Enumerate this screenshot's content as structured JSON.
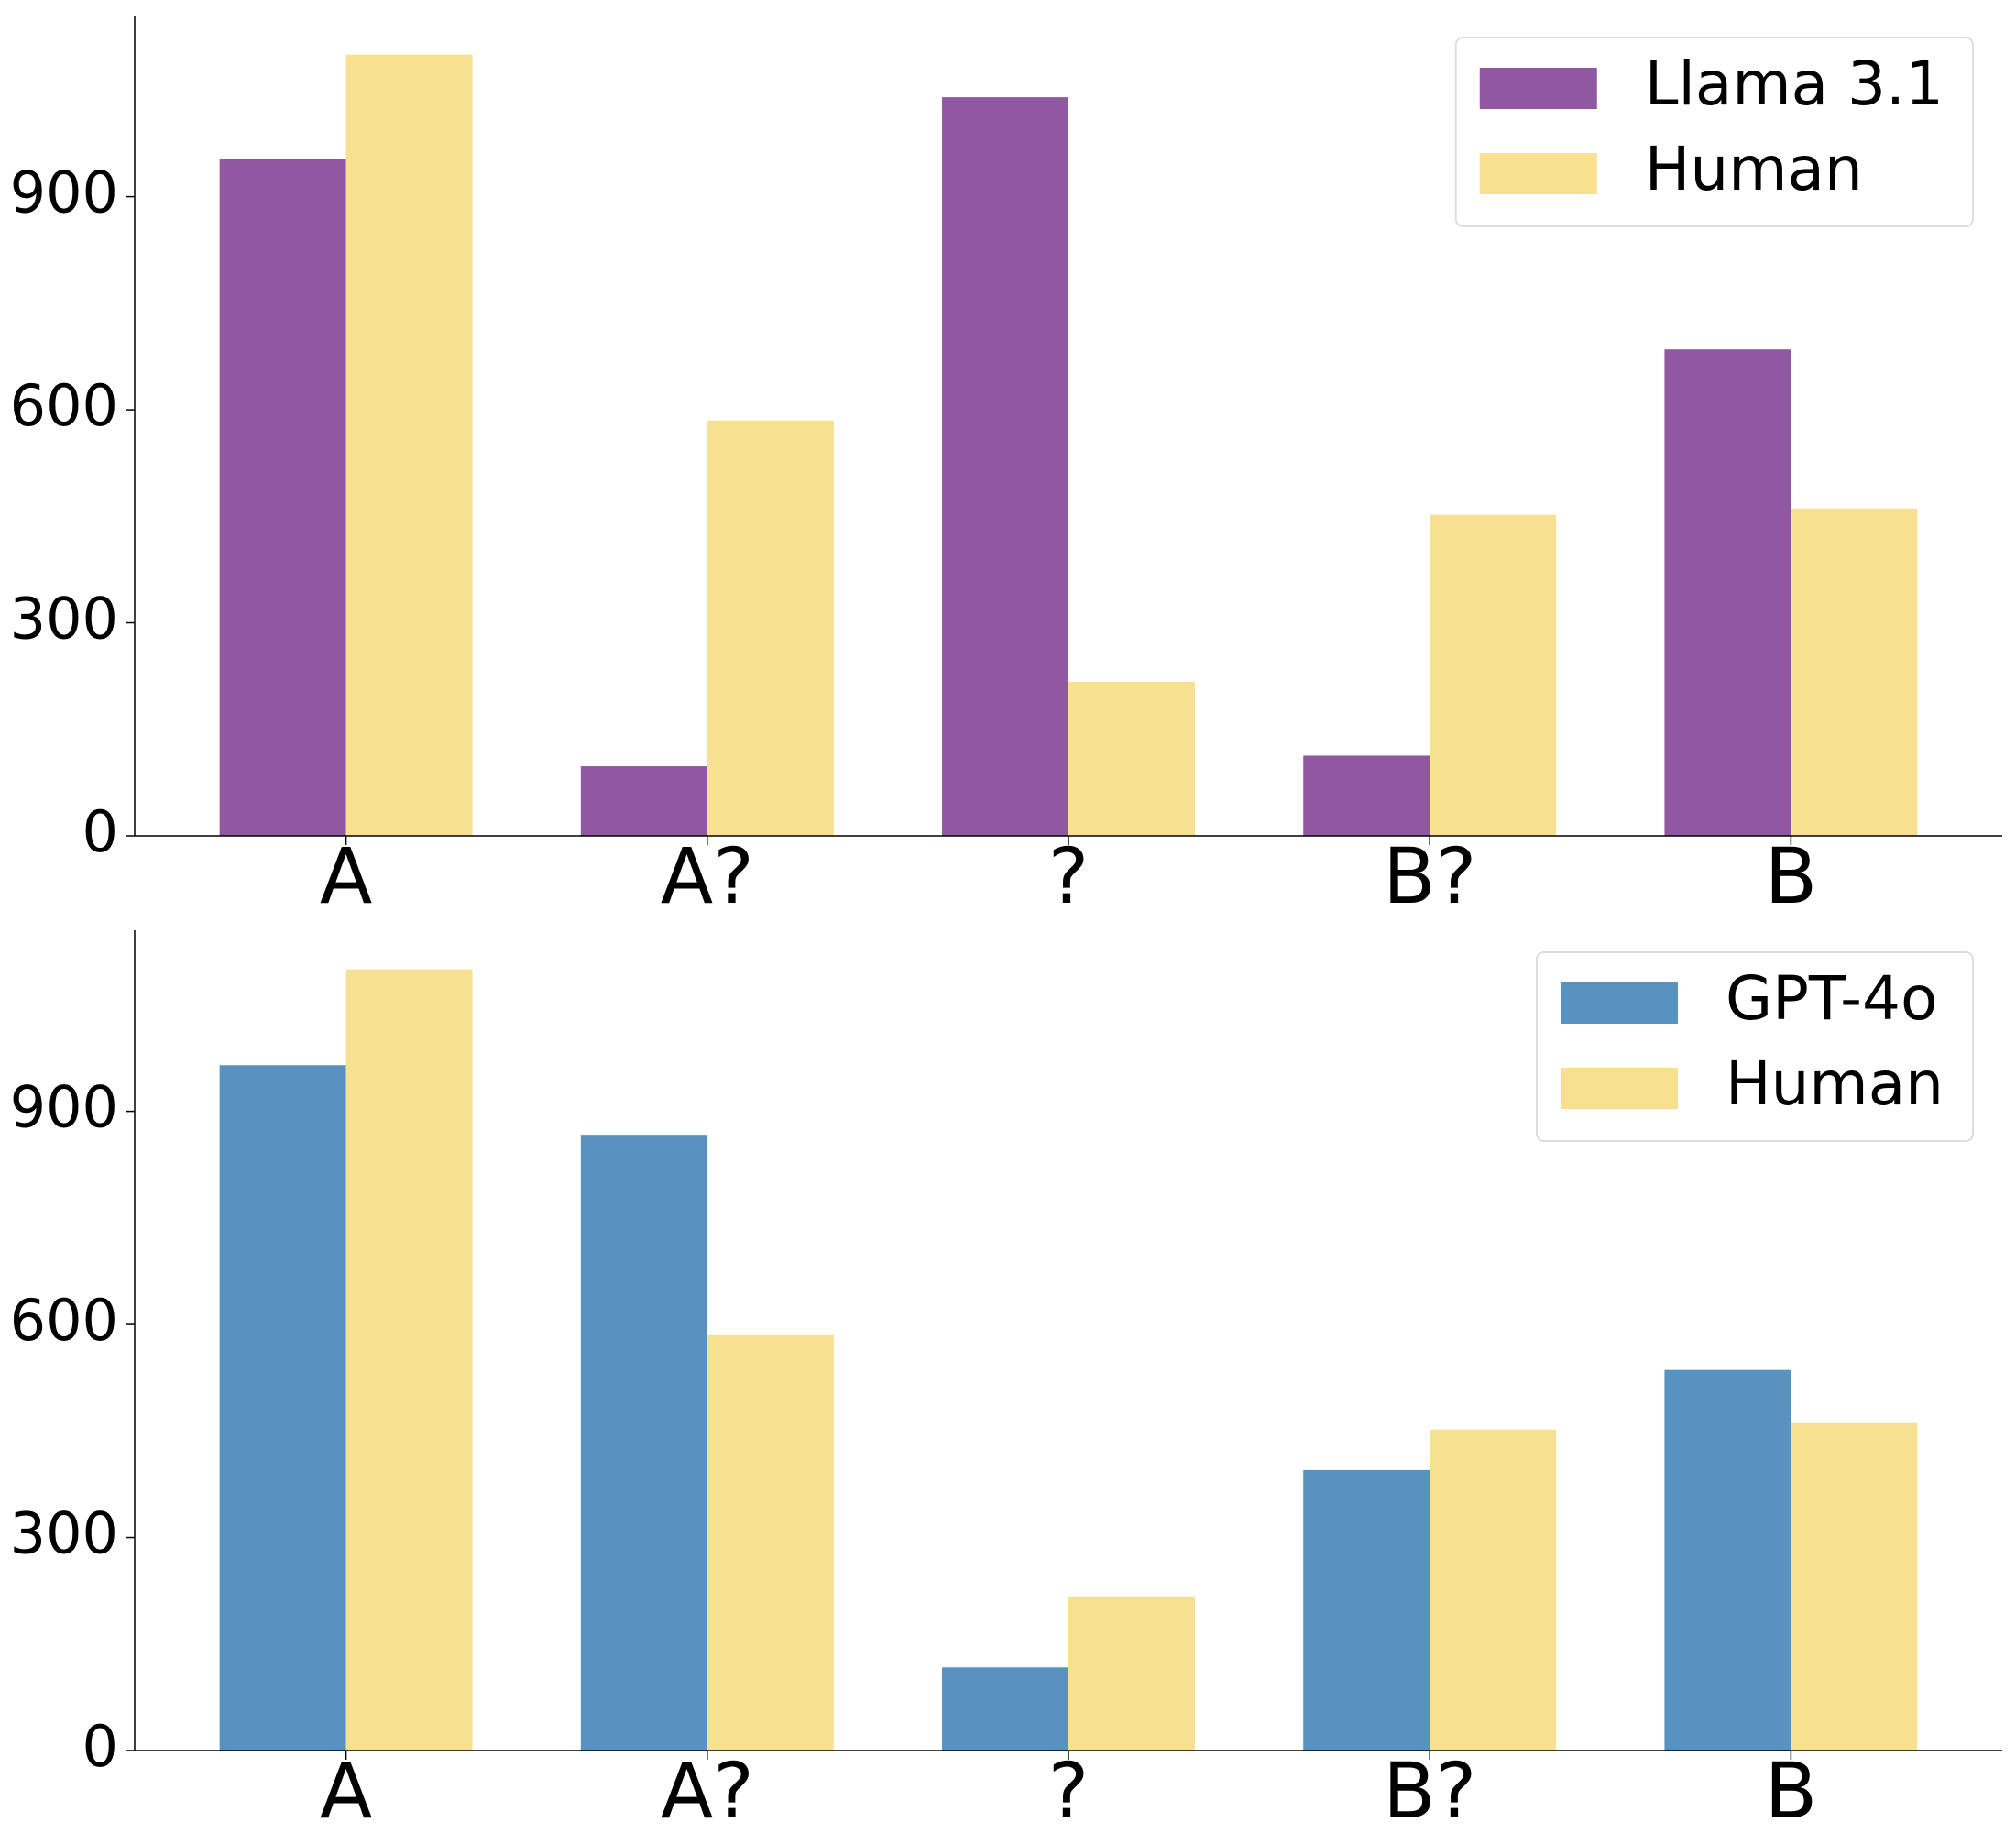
{
  "chart_data": [
    {
      "type": "bar",
      "categories": [
        "A",
        "A?",
        "?",
        "B?",
        "B"
      ],
      "series": [
        {
          "name": "Llama 3.1",
          "color": "#9058a0",
          "values": [
            953,
            98,
            1040,
            113,
            685
          ]
        },
        {
          "name": "Human",
          "color": "#f7e08f",
          "values": [
            1100,
            585,
            217,
            452,
            461
          ]
        }
      ],
      "ylim": [
        0,
        1155
      ],
      "yticks": [
        0,
        300,
        600,
        900
      ],
      "legend": "upper right"
    },
    {
      "type": "bar",
      "categories": [
        "A",
        "A?",
        "?",
        "B?",
        "B"
      ],
      "series": [
        {
          "name": "GPT-4o",
          "color": "#5892c0",
          "values": [
            965,
            867,
            117,
            395,
            536
          ]
        },
        {
          "name": "Human",
          "color": "#f7e08f",
          "values": [
            1100,
            585,
            217,
            452,
            461
          ]
        }
      ],
      "ylim": [
        0,
        1155
      ],
      "yticks": [
        0,
        300,
        600,
        900
      ],
      "legend": "upper right"
    }
  ]
}
